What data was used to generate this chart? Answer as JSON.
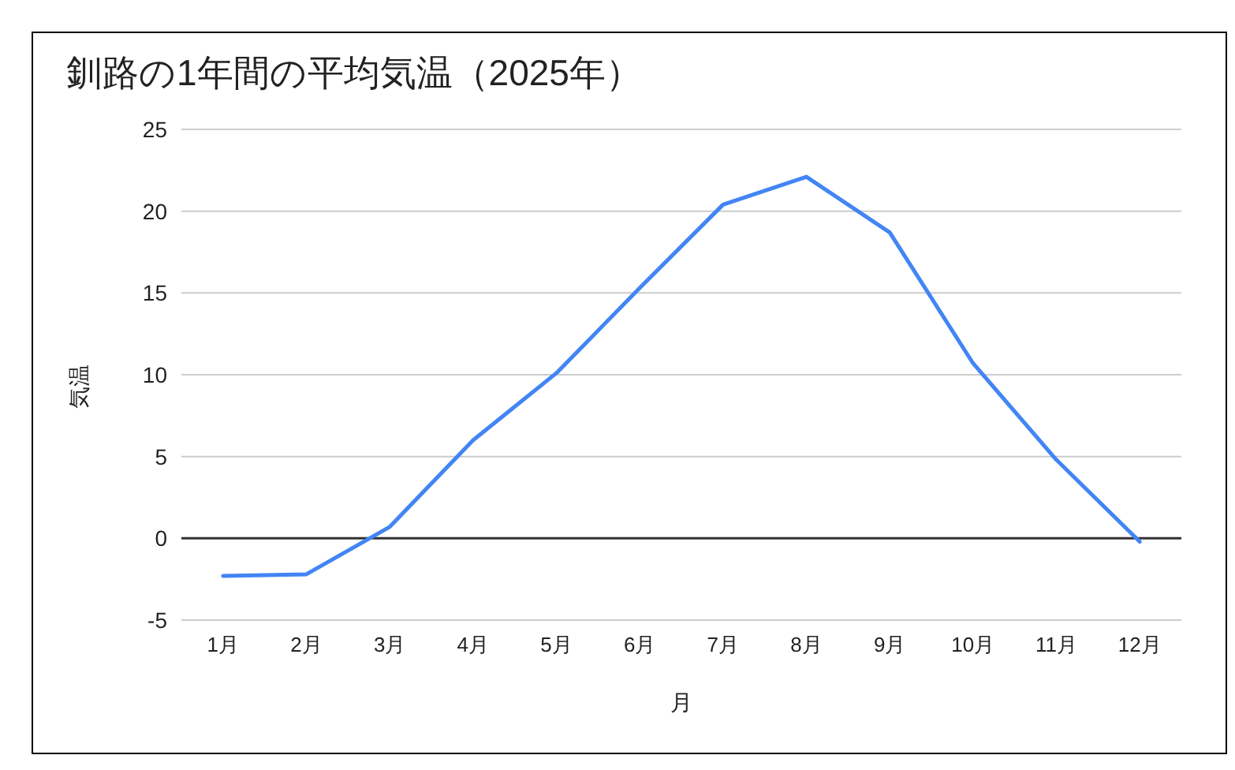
{
  "chart_data": {
    "type": "line",
    "title": "釧路の1年間の平均気温（2025年）",
    "xlabel": "月",
    "ylabel": "気温",
    "categories": [
      "1月",
      "2月",
      "3月",
      "4月",
      "5月",
      "6月",
      "7月",
      "8月",
      "9月",
      "10月",
      "11月",
      "12月"
    ],
    "series": [
      {
        "color": "#4285f4",
        "values": [
          -2.3,
          -2.2,
          0.7,
          6.0,
          10.1,
          15.3,
          20.4,
          22.1,
          18.7,
          10.7,
          4.8,
          -0.2
        ]
      }
    ],
    "ylim": [
      -5,
      25
    ],
    "yticks": [
      -5,
      0,
      5,
      10,
      15,
      20,
      25
    ],
    "grid": "y",
    "ref_lines": [
      {
        "axis": "y",
        "value": 0,
        "color": "#333333"
      }
    ]
  }
}
